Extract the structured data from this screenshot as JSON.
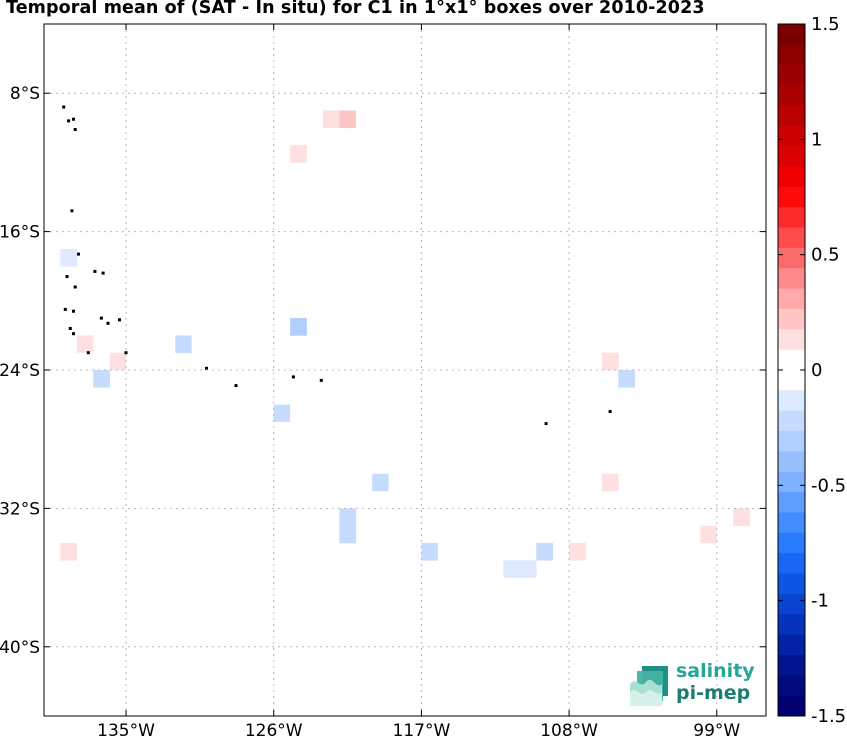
{
  "title": "Temporal mean of (SAT - In situ) for C1 in 1°x1° boxes over 2010-2023",
  "lat_labels": [
    {
      "lat": -8,
      "label": "8°S"
    },
    {
      "lat": -16,
      "label": "16°S"
    },
    {
      "lat": -24,
      "label": "24°S"
    },
    {
      "lat": -32,
      "label": "32°S"
    },
    {
      "lat": -40,
      "label": "40°S"
    }
  ],
  "lon_labels": [
    {
      "lon": -135,
      "label": "135°W"
    },
    {
      "lon": -126,
      "label": "126°W"
    },
    {
      "lon": -117,
      "label": "117°W"
    },
    {
      "lon": -108,
      "label": "108°W"
    },
    {
      "lon": -99,
      "label": "99°W"
    }
  ],
  "colorbar": {
    "min": -1.5,
    "max": 1.5,
    "ticks": [
      {
        "value": 1.5,
        "label": "1.5"
      },
      {
        "value": 1,
        "label": "1"
      },
      {
        "value": 0.5,
        "label": "0.5"
      },
      {
        "value": 0,
        "label": "0"
      },
      {
        "value": -0.5,
        "label": "-0.5"
      },
      {
        "value": -1,
        "label": "-1"
      },
      {
        "value": -1.5,
        "label": "-1.5"
      }
    ],
    "colors_top_to_bottom": [
      "#7a0000",
      "#8a0000",
      "#9a0000",
      "#aa0000",
      "#bb0000",
      "#cc0000",
      "#dd0000",
      "#ee0000",
      "#ff0a0a",
      "#ff2b2b",
      "#ff4c4c",
      "#fa6c6c",
      "#fd8b8b",
      "#ffaaaa",
      "#ffc6c6",
      "#ffe0e0",
      "#ffffff",
      "#ffffff",
      "#deeaff",
      "#c6dcff",
      "#b0cfff",
      "#98c0ff",
      "#7fb2ff",
      "#5f9eff",
      "#428cff",
      "#2a7bff",
      "#1868f5",
      "#0d56e3",
      "#0844cf",
      "#0533bb",
      "#0322a6",
      "#021590",
      "#010b7d",
      "#000070"
    ]
  },
  "chart_data": {
    "type": "heatmap",
    "title": "Temporal mean of (SAT - In situ) for C1 in 1°x1° boxes over 2010-2023",
    "lon_range": [
      -140,
      -96
    ],
    "lat_range": [
      -44,
      -4
    ],
    "cell_size_deg": 1,
    "value_range": [
      -1.5,
      1.5
    ],
    "cells": [
      {
        "lon": -127,
        "lat": -15,
        "v": -0.05
      },
      {
        "lon": -125,
        "lat": -12,
        "v": 0.1
      },
      {
        "lon": -123,
        "lat": -10,
        "v": 0.1
      },
      {
        "lon": -122,
        "lat": -10,
        "v": 0.2
      },
      {
        "lon": -133,
        "lat": -17,
        "v": -0.05
      },
      {
        "lon": -139,
        "lat": -18,
        "v": -0.1
      },
      {
        "lon": -125,
        "lat": -19,
        "v": -0.05
      },
      {
        "lon": -127,
        "lat": -19,
        "v": -0.05
      },
      {
        "lon": -127,
        "lat": -20,
        "v": -0.05
      },
      {
        "lon": -127,
        "lat": -21,
        "v": -0.05
      },
      {
        "lon": -114,
        "lat": -20,
        "v": -0.05
      },
      {
        "lon": -128,
        "lat": -22,
        "v": -0.05
      },
      {
        "lon": -127,
        "lat": -22,
        "v": -0.05
      },
      {
        "lon": -126,
        "lat": -22,
        "v": -0.05
      },
      {
        "lon": -125,
        "lat": -22,
        "v": -0.3
      },
      {
        "lon": -126,
        "lat": -21,
        "v": -0.05
      },
      {
        "lon": -131,
        "lat": -22,
        "v": -0.05
      },
      {
        "lon": -118,
        "lat": -22,
        "v": -0.05
      },
      {
        "lon": -118,
        "lat": -23,
        "v": -0.05
      },
      {
        "lon": -117,
        "lat": -23,
        "v": -0.05
      },
      {
        "lon": -133,
        "lat": -23,
        "v": -0.05
      },
      {
        "lon": -132,
        "lat": -23,
        "v": -0.2
      },
      {
        "lon": -131,
        "lat": -23,
        "v": -0.05
      },
      {
        "lon": -123,
        "lat": -23,
        "v": -0.05
      },
      {
        "lon": -112,
        "lat": -23,
        "v": -0.05
      },
      {
        "lon": -138,
        "lat": -23,
        "v": 0.15
      },
      {
        "lon": -138,
        "lat": -24,
        "v": -0.05
      },
      {
        "lon": -136,
        "lat": -24,
        "v": 0.15
      },
      {
        "lon": -135,
        "lat": -24,
        "v": -0.05
      },
      {
        "lon": -124,
        "lat": -24,
        "v": -0.05
      },
      {
        "lon": -110,
        "lat": -24,
        "v": -0.05
      },
      {
        "lon": -106,
        "lat": -24,
        "v": 0.15
      },
      {
        "lon": -137,
        "lat": -25,
        "v": -0.2
      },
      {
        "lon": -135,
        "lat": -25,
        "v": -0.05
      },
      {
        "lon": -134,
        "lat": -25,
        "v": -0.05
      },
      {
        "lon": -133,
        "lat": -25,
        "v": -0.05
      },
      {
        "lon": -119,
        "lat": -25,
        "v": -0.05
      },
      {
        "lon": -105,
        "lat": -25,
        "v": -0.2
      },
      {
        "lon": -134,
        "lat": -26,
        "v": -0.05
      },
      {
        "lon": -123,
        "lat": -26,
        "v": -0.05
      },
      {
        "lon": -100,
        "lat": -26,
        "v": -0.05
      },
      {
        "lon": -129,
        "lat": -27,
        "v": -0.05
      },
      {
        "lon": -126,
        "lat": -27,
        "v": -0.2
      },
      {
        "lon": -125,
        "lat": -27,
        "v": -0.05
      },
      {
        "lon": -127,
        "lat": -28,
        "v": -0.05
      },
      {
        "lon": -126,
        "lat": -28,
        "v": -0.05
      },
      {
        "lon": -123,
        "lat": -28,
        "v": -0.05
      },
      {
        "lon": -112,
        "lat": -28,
        "v": -0.05
      },
      {
        "lon": -132,
        "lat": -29,
        "v": -0.05
      },
      {
        "lon": -123,
        "lat": -29,
        "v": -0.05
      },
      {
        "lon": -121,
        "lat": -29,
        "v": -0.05
      },
      {
        "lon": -122,
        "lat": -30,
        "v": -0.05
      },
      {
        "lon": -121,
        "lat": -30,
        "v": -0.05
      },
      {
        "lon": -120,
        "lat": -30,
        "v": -0.05
      },
      {
        "lon": -119,
        "lat": -30,
        "v": -0.05
      },
      {
        "lon": -116,
        "lat": -30,
        "v": -0.05
      },
      {
        "lon": -103,
        "lat": -30,
        "v": -0.05
      },
      {
        "lon": -125,
        "lat": -31,
        "v": -0.05
      },
      {
        "lon": -121,
        "lat": -31,
        "v": -0.05
      },
      {
        "lon": -120,
        "lat": -31,
        "v": -0.2
      },
      {
        "lon": -119,
        "lat": -31,
        "v": -0.05
      },
      {
        "lon": -116,
        "lat": -31,
        "v": -0.05
      },
      {
        "lon": -106,
        "lat": -31,
        "v": 0.15
      },
      {
        "lon": -135,
        "lat": -32,
        "v": -0.05
      },
      {
        "lon": -132,
        "lat": -32,
        "v": -0.05
      },
      {
        "lon": -131,
        "lat": -32,
        "v": -0.05
      },
      {
        "lon": -120,
        "lat": -32,
        "v": -0.05
      },
      {
        "lon": -110,
        "lat": -32,
        "v": -0.05
      },
      {
        "lon": -109,
        "lat": -32,
        "v": -0.05
      },
      {
        "lon": -104,
        "lat": -32,
        "v": -0.05
      },
      {
        "lon": -125,
        "lat": -33,
        "v": -0.05
      },
      {
        "lon": -124,
        "lat": -33,
        "v": -0.05
      },
      {
        "lon": -123,
        "lat": -33,
        "v": -0.05
      },
      {
        "lon": -122,
        "lat": -33,
        "v": -0.2
      },
      {
        "lon": -116,
        "lat": -33,
        "v": -0.05
      },
      {
        "lon": -115,
        "lat": -33,
        "v": -0.05
      },
      {
        "lon": -109,
        "lat": -33,
        "v": -0.05
      },
      {
        "lon": -105,
        "lat": -33,
        "v": -0.05
      },
      {
        "lon": -99,
        "lat": -33,
        "v": -0.05
      },
      {
        "lon": -98,
        "lat": -33,
        "v": 0.15
      },
      {
        "lon": -122,
        "lat": -34,
        "v": -0.2
      },
      {
        "lon": -120,
        "lat": -34,
        "v": -0.05
      },
      {
        "lon": -119,
        "lat": -34,
        "v": -0.05
      },
      {
        "lon": -117,
        "lat": -34,
        "v": -0.05
      },
      {
        "lon": -116,
        "lat": -34,
        "v": -0.05
      },
      {
        "lon": -109,
        "lat": -34,
        "v": -0.05
      },
      {
        "lon": -108,
        "lat": -34,
        "v": -0.05
      },
      {
        "lon": -103,
        "lat": -34,
        "v": -0.05
      },
      {
        "lon": -100,
        "lat": -34,
        "v": 0.1
      },
      {
        "lon": -99,
        "lat": -34,
        "v": -0.05
      },
      {
        "lon": -139,
        "lat": -35,
        "v": 0.15
      },
      {
        "lon": -121,
        "lat": -35,
        "v": -0.05
      },
      {
        "lon": -117,
        "lat": -35,
        "v": -0.2
      },
      {
        "lon": -116,
        "lat": -35,
        "v": -0.05
      },
      {
        "lon": -114,
        "lat": -35,
        "v": -0.05
      },
      {
        "lon": -111,
        "lat": -35,
        "v": -0.05
      },
      {
        "lon": -110,
        "lat": -35,
        "v": -0.2
      },
      {
        "lon": -108,
        "lat": -35,
        "v": 0.15
      },
      {
        "lon": -106,
        "lat": -35,
        "v": -0.05
      },
      {
        "lon": -105,
        "lat": -35,
        "v": -0.05
      },
      {
        "lon": -135,
        "lat": -36,
        "v": -0.05
      },
      {
        "lon": -133,
        "lat": -36,
        "v": -0.05
      },
      {
        "lon": -129,
        "lat": -36,
        "v": -0.05
      },
      {
        "lon": -116,
        "lat": -36,
        "v": -0.05
      },
      {
        "lon": -115,
        "lat": -36,
        "v": -0.05
      },
      {
        "lon": -112,
        "lat": -36,
        "v": -0.12
      },
      {
        "lon": -111,
        "lat": -36,
        "v": -0.12
      },
      {
        "lon": -135,
        "lat": -37,
        "v": -0.05
      },
      {
        "lon": -134,
        "lat": -37,
        "v": -0.05
      }
    ],
    "islands": [
      {
        "lon": -138.8,
        "lat": -8.8
      },
      {
        "lon": -138.5,
        "lat": -9.6
      },
      {
        "lon": -138.2,
        "lat": -9.5
      },
      {
        "lon": -138.1,
        "lat": -10.1
      },
      {
        "lon": -138.3,
        "lat": -14.8
      },
      {
        "lon": -137.9,
        "lat": -17.3
      },
      {
        "lon": -136.9,
        "lat": -18.3
      },
      {
        "lon": -136.4,
        "lat": -18.4
      },
      {
        "lon": -138.6,
        "lat": -18.6
      },
      {
        "lon": -138.1,
        "lat": -19.2
      },
      {
        "lon": -138.7,
        "lat": -20.5
      },
      {
        "lon": -138.2,
        "lat": -20.6
      },
      {
        "lon": -136.5,
        "lat": -21.0
      },
      {
        "lon": -136.1,
        "lat": -21.3
      },
      {
        "lon": -135.4,
        "lat": -21.1
      },
      {
        "lon": -138.4,
        "lat": -21.6
      },
      {
        "lon": -138.2,
        "lat": -21.9
      },
      {
        "lon": -137.3,
        "lat": -23.0
      },
      {
        "lon": -135.0,
        "lat": -23.0
      },
      {
        "lon": -130.1,
        "lat": -23.9
      },
      {
        "lon": -128.3,
        "lat": -24.9
      },
      {
        "lon": -124.8,
        "lat": -24.4
      },
      {
        "lon": -123.1,
        "lat": -24.6
      },
      {
        "lon": -109.4,
        "lat": -27.1
      },
      {
        "lon": -105.5,
        "lat": -26.4
      }
    ]
  },
  "logo": {
    "line1": "salinity",
    "line2": "pi-mep"
  }
}
